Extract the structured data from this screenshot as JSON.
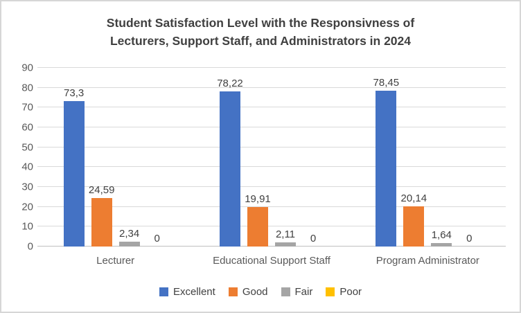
{
  "chart_data": {
    "type": "bar",
    "title_line1": "Student Satisfaction Level with the Responsivness of",
    "title_line2": "Lecturers, Support Staff, and Administrators in 2024",
    "categories": [
      "Lecturer",
      "Educational Support Staff",
      "Program Administrator"
    ],
    "series": [
      {
        "name": "Excellent",
        "color": "#4472C4",
        "values": [
          73.3,
          78.22,
          78.45
        ],
        "labels": [
          "73,3",
          "78,22",
          "78,45"
        ]
      },
      {
        "name": "Good",
        "color": "#ED7D31",
        "values": [
          24.59,
          19.91,
          20.14
        ],
        "labels": [
          "24,59",
          "19,91",
          "20,14"
        ]
      },
      {
        "name": "Fair",
        "color": "#A5A5A5",
        "values": [
          2.34,
          2.11,
          1.64
        ],
        "labels": [
          "2,34",
          "2,11",
          "1,64"
        ]
      },
      {
        "name": "Poor",
        "color": "#FFC000",
        "values": [
          0,
          0,
          0
        ],
        "labels": [
          "0",
          "0",
          "0"
        ]
      }
    ],
    "y_axis": {
      "min": 0,
      "max": 90,
      "step": 10,
      "ticks": [
        "0",
        "10",
        "20",
        "30",
        "40",
        "50",
        "60",
        "70",
        "80",
        "90"
      ]
    },
    "legend": [
      "Excellent",
      "Good",
      "Fair",
      "Poor"
    ],
    "legend_position": "bottom",
    "grid": true,
    "colors": {
      "gridline": "#D9D9D9",
      "axis_line": "#BFBFBF",
      "axis_text": "#595959",
      "title_text": "#404040",
      "data_label_text": "#404040",
      "frame_border": "#D6D6D6",
      "background": "#FFFFFF"
    }
  }
}
